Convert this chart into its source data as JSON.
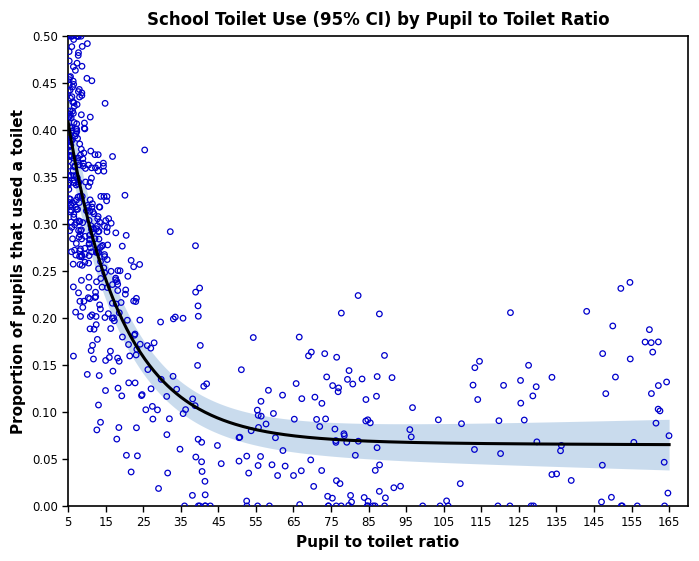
{
  "title": "School Toilet Use (95% CI) by Pupil to Toilet Ratio",
  "xlabel": "Pupil to toilet ratio",
  "ylabel": "Proportion of pupils that used a toilet",
  "xlim": [
    5,
    170
  ],
  "ylim": [
    0.0,
    0.5
  ],
  "xticks": [
    5,
    15,
    25,
    35,
    45,
    55,
    65,
    75,
    85,
    95,
    105,
    115,
    125,
    135,
    145,
    155,
    165
  ],
  "yticks": [
    0.0,
    0.05,
    0.1,
    0.15,
    0.2,
    0.25,
    0.3,
    0.35,
    0.4,
    0.45,
    0.5
  ],
  "scatter_color": "#0000CC",
  "line_color": "#000000",
  "ci_color": "#b8d0e8",
  "background_color": "#ffffff",
  "seed": 42,
  "n_points": 550,
  "fit_a": 0.65,
  "fit_b": -0.52,
  "fit_c": 0.08,
  "noise_scale": 0.075
}
